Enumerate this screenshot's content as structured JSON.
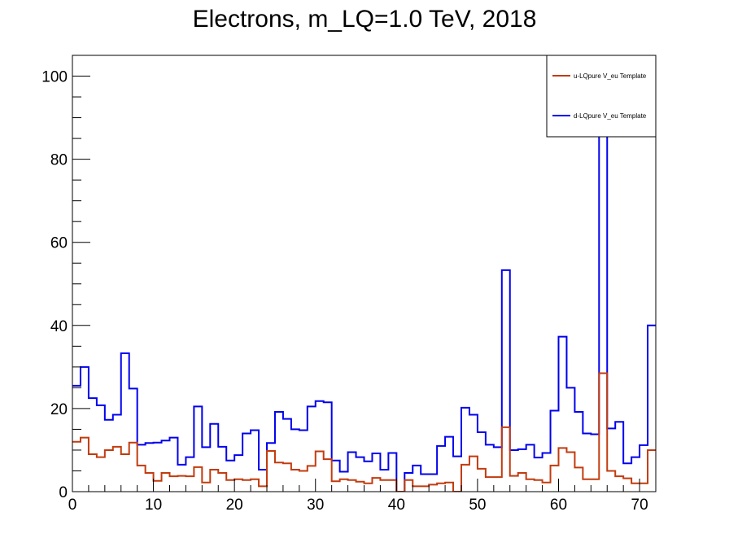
{
  "chart_data": {
    "type": "histogram",
    "title": "Electrons, m_LQ=1.0 TeV, 2018",
    "xlabel": "",
    "ylabel": "",
    "xlim": [
      0,
      72
    ],
    "ylim": [
      0,
      105
    ],
    "x_ticks": [
      0,
      10,
      20,
      30,
      40,
      50,
      60,
      70
    ],
    "y_ticks": [
      0,
      20,
      40,
      60,
      80,
      100
    ],
    "grid": false,
    "legend_position": "top-right",
    "bins": 72,
    "series": [
      {
        "name": "u-LQpure V_eu Template",
        "color": "#c23b0e",
        "values": [
          12,
          13,
          9,
          8.3,
          10,
          10.8,
          9,
          11.8,
          6.3,
          4.5,
          2.6,
          4.5,
          3.7,
          3.8,
          3.7,
          5.9,
          2.2,
          5.3,
          4.5,
          2.8,
          3,
          2.8,
          3,
          1.3,
          9.8,
          7,
          6.8,
          5.3,
          5,
          6.2,
          9.7,
          7.8,
          2.5,
          3,
          2.8,
          2.4,
          2,
          3.3,
          2.8,
          2.8,
          0,
          2.8,
          1.3,
          1.3,
          1.7,
          2,
          2.2,
          0,
          6.5,
          8.5,
          5.5,
          3.5,
          3.5,
          15.5,
          3.8,
          4.5,
          3,
          2.8,
          2.2,
          6.3,
          10.5,
          9.5,
          5.8,
          3,
          3,
          28.5,
          5,
          3.7,
          3.2,
          2,
          2,
          10
        ]
      },
      {
        "name": "d-LQpure V_eu Template",
        "color": "#0000ee",
        "values": [
          25.5,
          30,
          22.5,
          20.8,
          17.3,
          18.5,
          33.3,
          24.8,
          11.3,
          11.7,
          11.8,
          12.3,
          13,
          6.5,
          8.3,
          20.5,
          10.7,
          16.3,
          10.8,
          7.5,
          8.8,
          14,
          14.8,
          5.3,
          11.7,
          19.2,
          17.5,
          15,
          14.8,
          20.5,
          21.8,
          21.5,
          7.5,
          4.8,
          9.5,
          8.3,
          7.3,
          9.2,
          5.3,
          9.3,
          0,
          4.5,
          6.3,
          4.2,
          4.2,
          11,
          13.2,
          8.5,
          20.2,
          18.5,
          14.3,
          11.3,
          10.7,
          53.3,
          10,
          10.2,
          11.3,
          8.2,
          9.3,
          19.5,
          37.3,
          25,
          19.2,
          14,
          13.8,
          100,
          15.2,
          16.8,
          6.8,
          8.3,
          11.2,
          40
        ]
      }
    ]
  }
}
